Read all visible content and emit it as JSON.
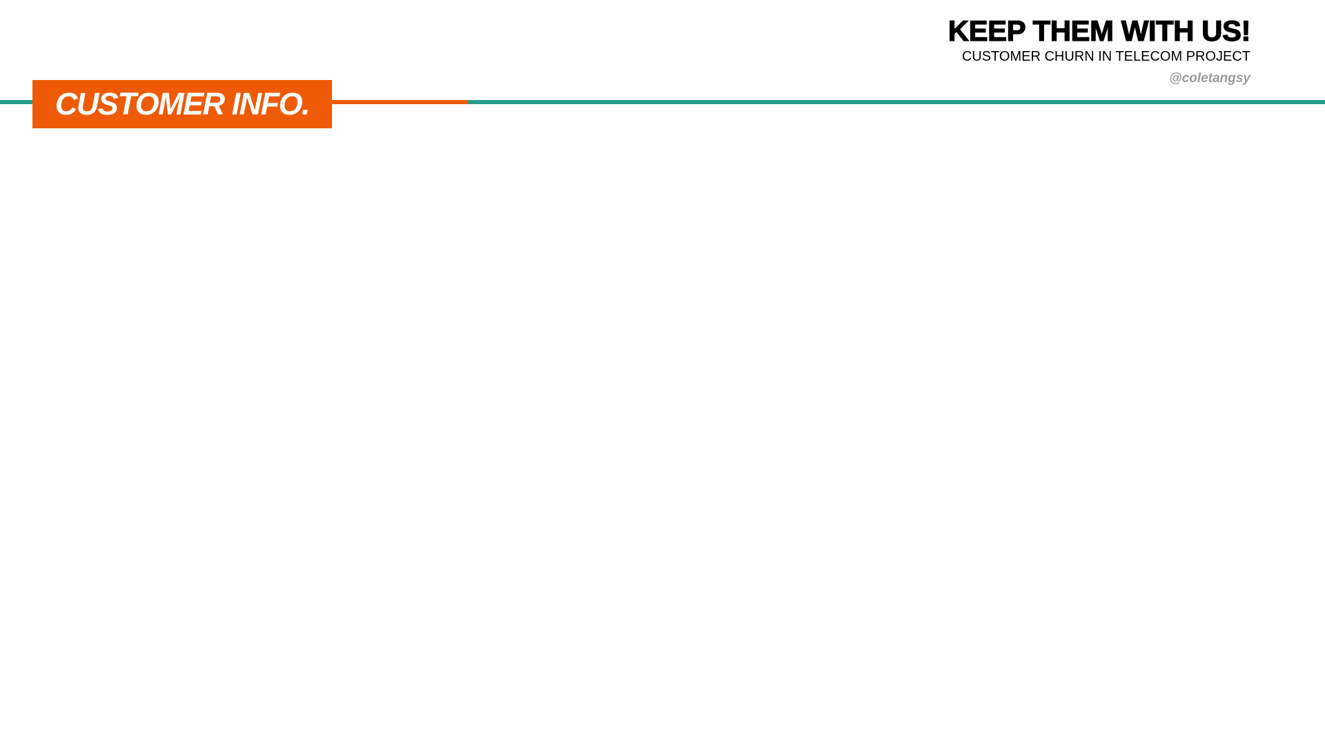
{
  "header": {
    "title": "KEEP THEM WITH US!",
    "subtitle": "CUSTOMER CHURN IN TELECOM PROJECT",
    "author": "@coletangsy"
  },
  "section": {
    "label": "CUSTOMER INFO."
  },
  "colors": {
    "accent_orange": "#ee5a06",
    "accent_teal": "#259b8a",
    "author_gray": "#9a9a9a"
  }
}
